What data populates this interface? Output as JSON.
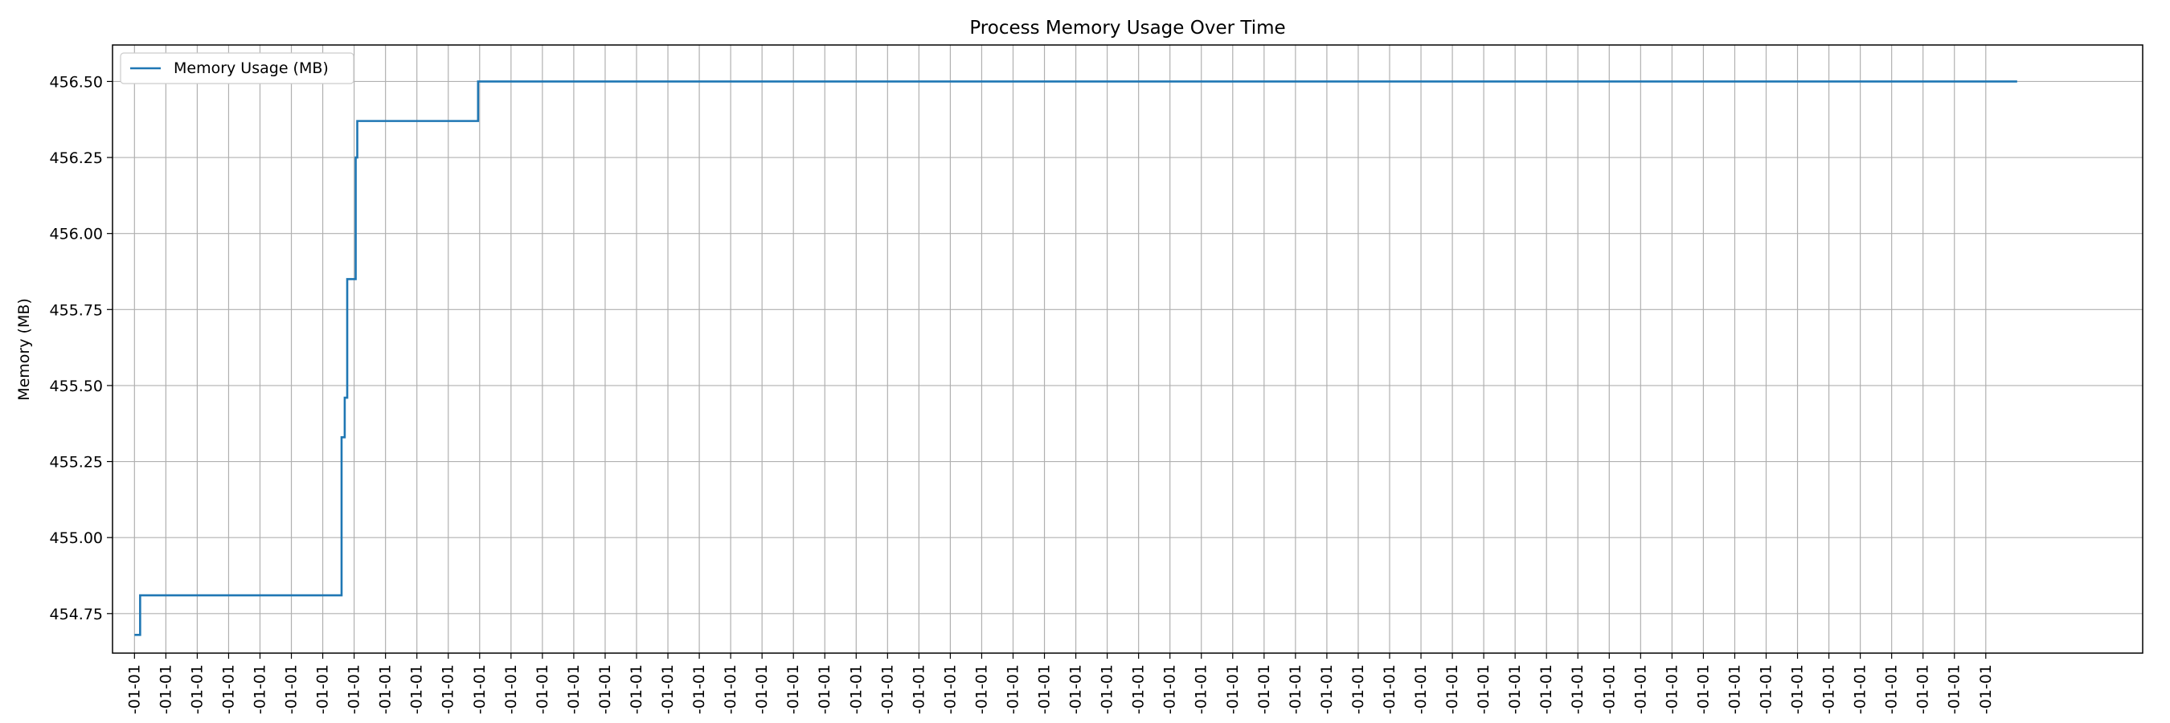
{
  "chart_data": {
    "type": "line",
    "title": "Process Memory Usage Over Time",
    "xlabel": "",
    "ylabel": "Memory (MB)",
    "ylim": [
      454.62,
      456.62
    ],
    "yticks": [
      454.75,
      455.0,
      455.25,
      455.5,
      455.75,
      456.0,
      456.25,
      456.5
    ],
    "ytick_labels": [
      "454.75",
      "455.00",
      "455.25",
      "455.50",
      "455.75",
      "456.00",
      "456.25",
      "456.50"
    ],
    "xlim": [
      -0.7,
      64.0
    ],
    "x_tick_count": 60,
    "x_tick_label": "-01-01",
    "grid": true,
    "legend_position": "top-left",
    "series": [
      {
        "name": "Memory Usage (MB)",
        "color": "#1f77b4",
        "step": true,
        "points": [
          [
            0.0,
            454.68
          ],
          [
            0.18,
            454.68
          ],
          [
            0.18,
            454.81
          ],
          [
            6.6,
            454.81
          ],
          [
            6.6,
            455.33
          ],
          [
            6.7,
            455.33
          ],
          [
            6.7,
            455.46
          ],
          [
            6.78,
            455.46
          ],
          [
            6.78,
            455.85
          ],
          [
            7.05,
            455.85
          ],
          [
            7.05,
            456.25
          ],
          [
            7.1,
            456.25
          ],
          [
            7.1,
            456.37
          ],
          [
            10.95,
            456.37
          ],
          [
            10.95,
            456.5
          ],
          [
            60.0,
            456.5
          ]
        ]
      }
    ]
  }
}
